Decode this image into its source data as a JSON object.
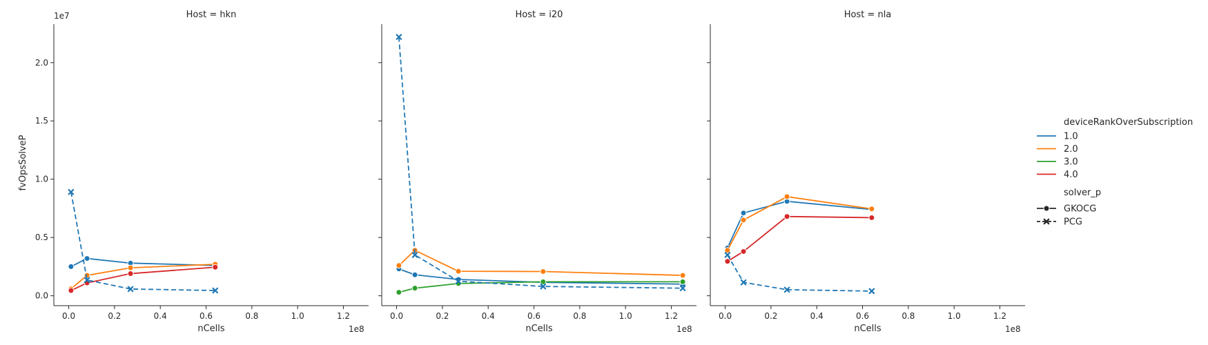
{
  "chart_data": {
    "type": "line",
    "facet_titles": [
      "Host = hkn",
      "Host = i20",
      "Host = nla"
    ],
    "xlabel": "nCells",
    "ylabel": "fvOpsSolveP",
    "x_offset_text": "1e8",
    "y_offset_text": "1e7",
    "x_scale": 100000000,
    "y_scale": 10000000,
    "xlim": [
      -6500000,
      131000000
    ],
    "ylim": [
      -850000,
      23300000
    ],
    "x_ticks": [
      0.0,
      0.2,
      0.4,
      0.6,
      0.8,
      1.0,
      1.2
    ],
    "x_tick_labels": [
      "0.0",
      "0.2",
      "0.4",
      "0.6",
      "0.8",
      "1.0",
      "1.2"
    ],
    "y_ticks": [
      0,
      5000000,
      10000000,
      15000000,
      20000000
    ],
    "y_tick_labels": [
      "0.0",
      "0.5",
      "1.0",
      "1.5",
      "2.0"
    ],
    "grid": false,
    "legend": {
      "placement": "right",
      "hue_title": "deviceRankOverSubscription",
      "hue_entries": [
        {
          "label": "1.0",
          "color": "#1f77b4"
        },
        {
          "label": "2.0",
          "color": "#ff7f0e"
        },
        {
          "label": "3.0",
          "color": "#2ca02c"
        },
        {
          "label": "4.0",
          "color": "#d62728"
        }
      ],
      "style_title": "solver_p",
      "style_entries": [
        {
          "label": "GKOCG",
          "marker": "circle",
          "dash": "solid"
        },
        {
          "label": "PCG",
          "marker": "x",
          "dash": "dashed"
        }
      ]
    },
    "panels": [
      {
        "host": "hkn",
        "series": [
          {
            "hue": "1.0",
            "solver": "GKOCG",
            "color": "#1f77b4",
            "x": [
              1000000,
              8000000,
              27000000,
              64000000
            ],
            "y": [
              2500000,
              3200000,
              2800000,
              2600000
            ]
          },
          {
            "hue": "2.0",
            "solver": "GKOCG",
            "color": "#ff7f0e",
            "x": [
              1000000,
              8000000,
              27000000,
              64000000
            ],
            "y": [
              600000,
              1750000,
              2400000,
              2700000
            ]
          },
          {
            "hue": "4.0",
            "solver": "GKOCG",
            "color": "#d62728",
            "x": [
              1000000,
              8000000,
              27000000,
              64000000
            ],
            "y": [
              450000,
              1100000,
              1900000,
              2450000
            ]
          },
          {
            "hue": "1.0",
            "solver": "PCG",
            "color": "#1f77b4",
            "x": [
              1000000,
              8000000,
              27000000,
              64000000
            ],
            "y": [
              8900000,
              1350000,
              580000,
              450000
            ]
          }
        ]
      },
      {
        "host": "i20",
        "series": [
          {
            "hue": "1.0",
            "solver": "GKOCG",
            "color": "#1f77b4",
            "x": [
              1000000,
              8000000,
              27000000,
              64000000,
              125000000
            ],
            "y": [
              2300000,
              1800000,
              1400000,
              1150000,
              1000000
            ]
          },
          {
            "hue": "2.0",
            "solver": "GKOCG",
            "color": "#ff7f0e",
            "x": [
              1000000,
              8000000,
              27000000,
              64000000,
              125000000
            ],
            "y": [
              2600000,
              3900000,
              2100000,
              2080000,
              1750000
            ]
          },
          {
            "hue": "3.0",
            "solver": "GKOCG",
            "color": "#2ca02c",
            "x": [
              1000000,
              8000000,
              27000000,
              64000000,
              125000000
            ],
            "y": [
              300000,
              650000,
              1050000,
              1200000,
              1200000
            ]
          },
          {
            "hue": "1.0",
            "solver": "PCG",
            "color": "#1f77b4",
            "x": [
              1000000,
              8000000,
              27000000,
              64000000,
              125000000
            ],
            "y": [
              22200000,
              3500000,
              1250000,
              800000,
              650000
            ]
          }
        ]
      },
      {
        "host": "nla",
        "series": [
          {
            "hue": "1.0",
            "solver": "GKOCG",
            "color": "#1f77b4",
            "x": [
              1000000,
              8000000,
              27000000,
              64000000
            ],
            "y": [
              4100000,
              7100000,
              8100000,
              7400000
            ]
          },
          {
            "hue": "2.0",
            "solver": "GKOCG",
            "color": "#ff7f0e",
            "x": [
              1000000,
              8000000,
              27000000,
              64000000
            ],
            "y": [
              3900000,
              6500000,
              8500000,
              7450000
            ]
          },
          {
            "hue": "4.0",
            "solver": "GKOCG",
            "color": "#d62728",
            "x": [
              1000000,
              8000000,
              27000000,
              64000000
            ],
            "y": [
              2950000,
              3800000,
              6800000,
              6700000
            ]
          },
          {
            "hue": "1.0",
            "solver": "PCG",
            "color": "#1f77b4",
            "x": [
              1000000,
              8000000,
              27000000,
              64000000
            ],
            "y": [
              3500000,
              1150000,
              520000,
              400000
            ]
          }
        ]
      }
    ]
  }
}
